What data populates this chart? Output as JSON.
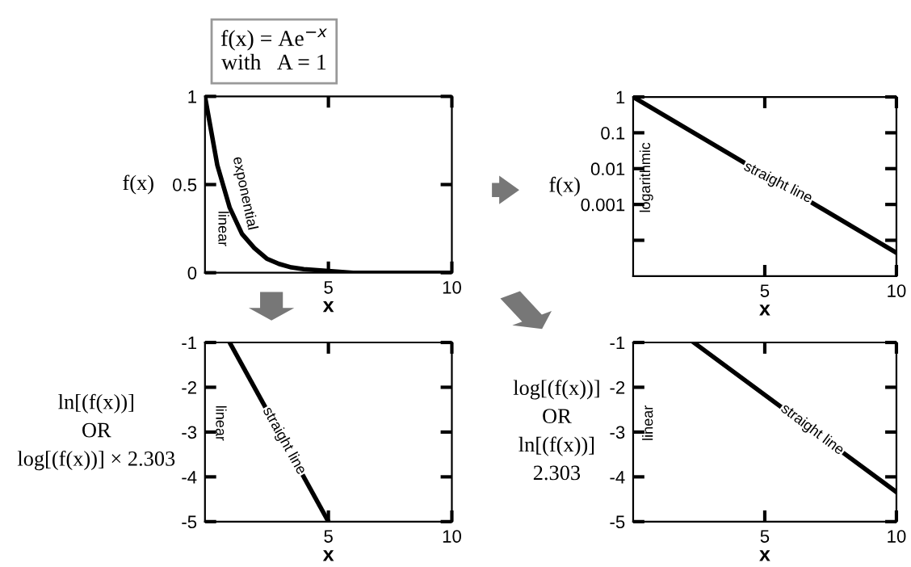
{
  "chart_data": [
    {
      "type": "line",
      "title": "f(x) = Ae$^{−x}$\nwith   A = 1",
      "xlabel": "x",
      "ylabel": "f(x)",
      "x": [
        0,
        0.5,
        1,
        1.5,
        2,
        2.5,
        3,
        3.5,
        4,
        5,
        6,
        8,
        10
      ],
      "series": [
        {
          "color": "#000000",
          "values": [
            1,
            0.61,
            0.37,
            0.22,
            0.14,
            0.08,
            0.05,
            0.03,
            0.02,
            0.01,
            0,
            0,
            0
          ]
        }
      ],
      "xlim": [
        0,
        10
      ],
      "xticks": [
        5,
        10
      ],
      "ylim": [
        0,
        1
      ],
      "yticks": [
        0,
        0.5,
        1
      ],
      "annotations": [
        "linear",
        "exponential"
      ]
    },
    {
      "type": "line",
      "xlabel": "x",
      "ylabel": "f(x)",
      "x": [
        0,
        10
      ],
      "series": [
        {
          "color": "#000000",
          "values": [
            1,
            4.5e-05
          ]
        }
      ],
      "log": "y",
      "xlim": [
        0,
        10
      ],
      "xticks": [
        5,
        10
      ],
      "ylim": [
        1e-05,
        1
      ],
      "yticks": [
        {
          "value": 0.0001,
          "label": null
        },
        0.001,
        0.01,
        0.1,
        1
      ],
      "annotations": [
        "logarithmic",
        {
          "text": "straight line",
          "x": 5.5,
          "y": 0.004
        }
      ]
    },
    {
      "type": "line",
      "xlabel": "x",
      "ylabel": "ln[(f(x))]\nOR\nlog[(f(x))] × 2.303",
      "x": [
        1,
        5
      ],
      "series": [
        {
          "color": "#000000",
          "values": [
            -1,
            -5
          ]
        }
      ],
      "xlim": [
        0,
        10
      ],
      "xticks": [
        5,
        10
      ],
      "ylim": [
        -5,
        -1
      ],
      "yticks": [
        -5,
        -4,
        -3,
        -2,
        -1
      ],
      "annotations": [
        "linear",
        {
          "text": "straight line",
          "x": 3.2,
          "y": -3.2
        }
      ]
    },
    {
      "type": "line",
      "xlabel": "x",
      "ylabel": "log[(f(x))]\nOR\nln[(f(x))]\n2.303",
      "x": [
        2.3,
        10
      ],
      "series": [
        {
          "color": "#000000",
          "values": [
            -1,
            -4.34
          ]
        }
      ],
      "xlim": [
        0,
        10
      ],
      "xticks": [
        5,
        10
      ],
      "ylim": [
        -5,
        -1
      ],
      "yticks": [
        -5,
        -4,
        -3,
        -2,
        -1
      ],
      "annotations": [
        "linear",
        {
          "text": "straight line",
          "x": 6.8,
          "y": -2.95
        }
      ]
    }
  ]
}
